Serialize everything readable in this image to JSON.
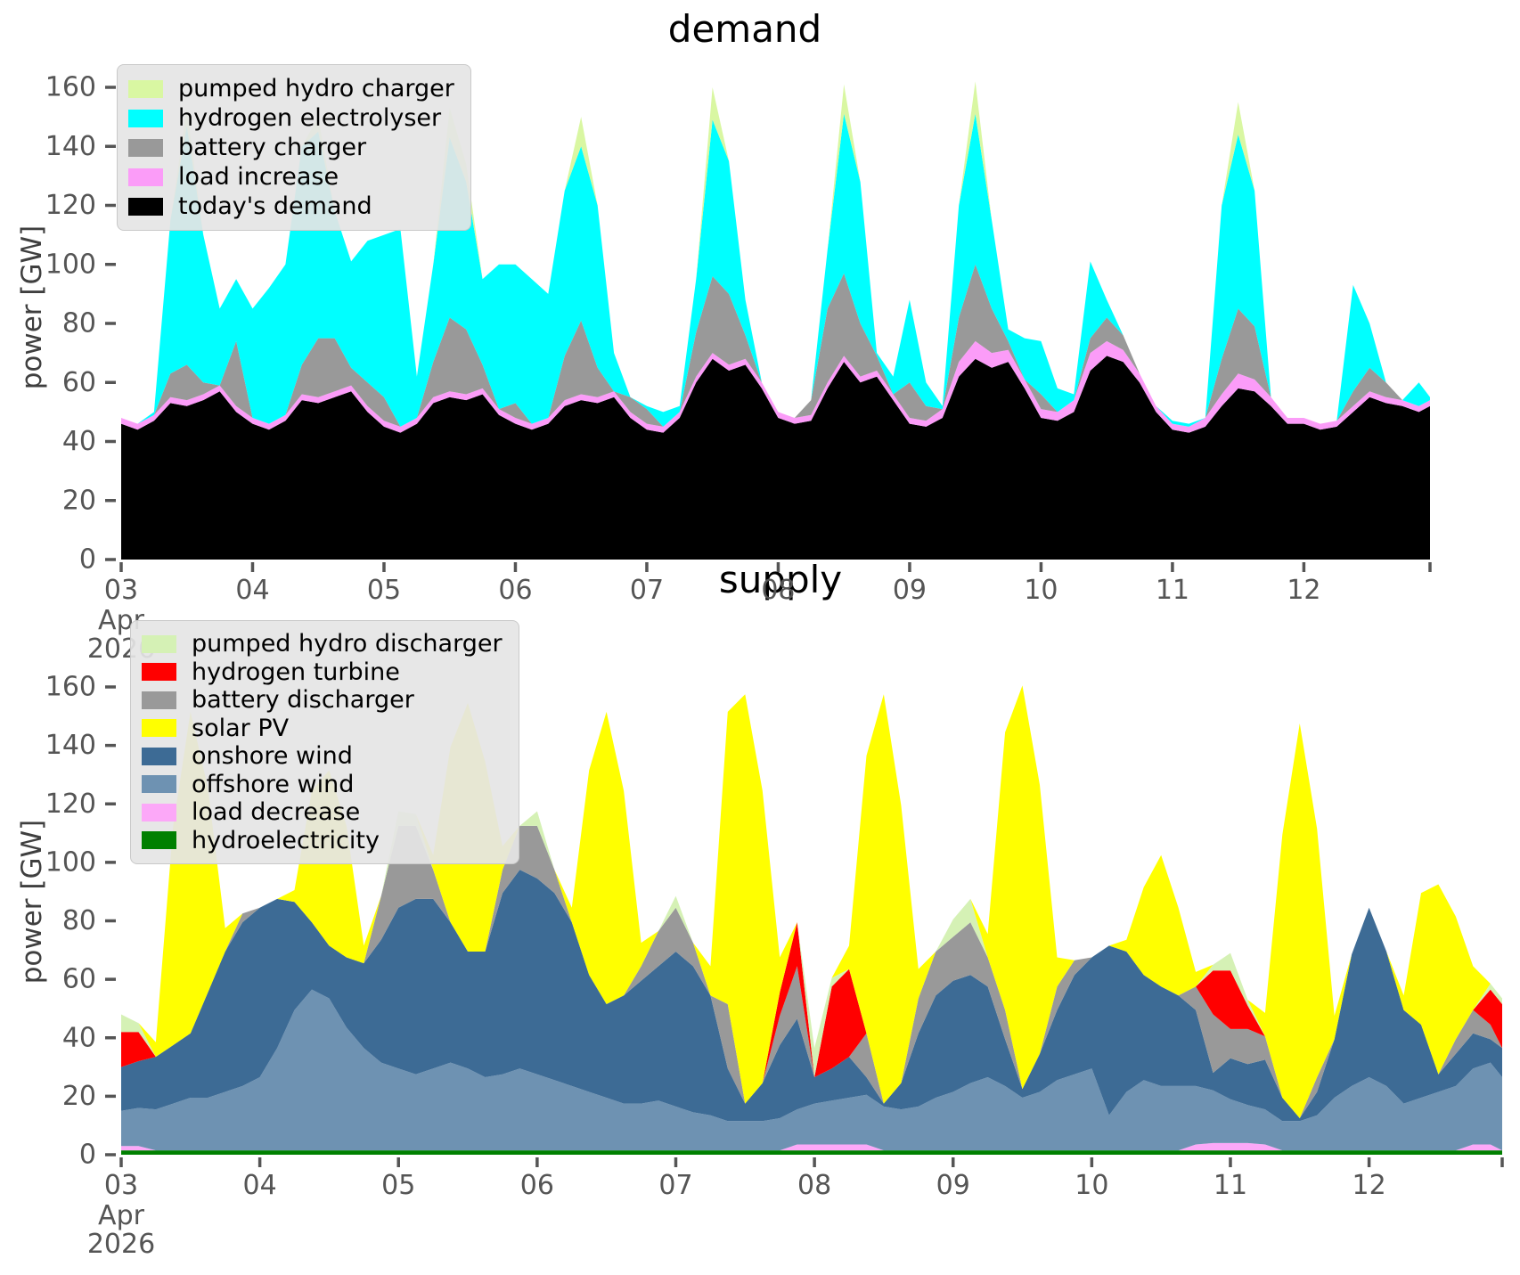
{
  "chart_data": [
    {
      "type": "area",
      "stacked": true,
      "title": "demand",
      "ylabel": "power [GW]",
      "ylim": [
        0,
        170
      ],
      "grid": false,
      "legend_position": "upper left",
      "x_start": 3,
      "x_step_days": 0.125,
      "x_end": 12.96,
      "xtick_labels": [
        "03",
        "04",
        "05",
        "06",
        "07",
        "08",
        "09",
        "10",
        "11",
        "12"
      ],
      "xtick_month": "Apr",
      "xtick_year": "2026",
      "yticks": [
        0,
        20,
        40,
        60,
        80,
        100,
        120,
        140,
        160
      ],
      "legend_order": [
        "pumped hydro charger",
        "hydrogen electrolyser",
        "battery charger",
        "load increase",
        "today's demand"
      ],
      "series": [
        {
          "name": "today's demand",
          "color": "#000000",
          "values": [
            46,
            44,
            47,
            53,
            52,
            54,
            57,
            50,
            46,
            44,
            47,
            54,
            53,
            55,
            57,
            50,
            45,
            43,
            46,
            53,
            55,
            54,
            56,
            49,
            46,
            44,
            46,
            52,
            54,
            53,
            55,
            48,
            44,
            43,
            48,
            60,
            68,
            64,
            66,
            58,
            48,
            46,
            47,
            58,
            67,
            60,
            62,
            54,
            46,
            45,
            48,
            62,
            68,
            65,
            67,
            58,
            48,
            47,
            50,
            64,
            69,
            67,
            60,
            50,
            44,
            43,
            45,
            52,
            58,
            57,
            52,
            46,
            46,
            44,
            45,
            50,
            55,
            53,
            52,
            50,
            52
          ]
        },
        {
          "name": "load increase",
          "color": "#fb9cf8",
          "values": [
            2,
            2,
            2,
            2,
            2,
            2,
            2,
            2,
            2,
            2,
            2,
            2,
            2,
            2,
            2,
            2,
            2,
            2,
            2,
            2,
            2,
            2,
            2,
            2,
            2,
            2,
            2,
            2,
            2,
            2,
            2,
            2,
            2,
            2,
            2,
            2,
            2,
            2,
            2,
            2,
            2,
            2,
            2,
            2,
            2,
            2,
            2,
            2,
            2,
            2,
            3,
            5,
            6,
            5,
            4,
            3,
            3,
            3,
            4,
            6,
            5,
            4,
            3,
            2,
            2,
            2,
            3,
            4,
            5,
            4,
            3,
            2,
            2,
            2,
            2,
            2,
            2,
            2,
            2,
            2,
            2
          ]
        },
        {
          "name": "battery charger",
          "color": "#999999",
          "values": [
            0,
            0,
            0,
            8,
            12,
            4,
            0,
            22,
            0,
            0,
            0,
            10,
            20,
            18,
            6,
            8,
            8,
            0,
            0,
            12,
            25,
            22,
            8,
            0,
            5,
            0,
            0,
            15,
            25,
            10,
            0,
            5,
            5,
            0,
            0,
            15,
            26,
            24,
            8,
            0,
            0,
            0,
            5,
            25,
            28,
            18,
            5,
            0,
            12,
            5,
            0,
            15,
            26,
            15,
            3,
            0,
            5,
            0,
            0,
            5,
            8,
            5,
            0,
            0,
            0,
            0,
            0,
            12,
            22,
            18,
            0,
            0,
            0,
            0,
            0,
            5,
            8,
            5,
            0,
            0,
            0
          ]
        },
        {
          "name": "hydrogen electrolyser",
          "color": "#00ffff",
          "values": [
            0,
            0,
            1,
            52,
            81,
            50,
            26,
            21,
            37,
            46,
            51,
            74,
            70,
            43,
            36,
            48,
            55,
            67,
            14,
            33,
            61,
            50,
            29,
            49,
            47,
            49,
            42,
            56,
            59,
            55,
            13,
            0,
            1,
            5,
            2,
            18,
            53,
            45,
            12,
            0,
            0,
            0,
            0,
            20,
            54,
            48,
            1,
            6,
            28,
            8,
            1,
            38,
            51,
            30,
            4,
            14,
            18,
            8,
            2,
            26,
            6,
            0,
            0,
            0,
            1,
            1,
            0,
            52,
            59,
            46,
            0,
            0,
            0,
            0,
            0,
            36,
            15,
            0,
            0,
            8,
            1
          ]
        },
        {
          "name": "pumped hydro charger",
          "color": "#d9f7a2",
          "values": [
            0,
            0,
            0,
            0,
            6,
            0,
            0,
            0,
            0,
            0,
            0,
            0,
            5,
            0,
            0,
            0,
            0,
            0,
            0,
            0,
            10,
            6,
            0,
            0,
            0,
            0,
            0,
            0,
            10,
            0,
            0,
            0,
            0,
            0,
            0,
            0,
            11,
            0,
            0,
            0,
            0,
            0,
            0,
            0,
            10,
            0,
            0,
            0,
            0,
            0,
            0,
            0,
            11,
            0,
            0,
            0,
            0,
            0,
            0,
            0,
            0,
            0,
            0,
            0,
            0,
            0,
            0,
            0,
            11,
            0,
            0,
            0,
            0,
            0,
            0,
            0,
            0,
            0,
            0,
            0,
            0
          ]
        }
      ]
    },
    {
      "type": "area",
      "stacked": true,
      "title": "supply",
      "ylabel": "power [GW]",
      "ylim": [
        0,
        170
      ],
      "grid": false,
      "legend_position": "upper left",
      "x_start": 3,
      "x_step_days": 0.125,
      "x_end": 12.96,
      "xtick_labels": [
        "03",
        "04",
        "05",
        "06",
        "07",
        "08",
        "09",
        "10",
        "11",
        "12"
      ],
      "xtick_month": "Apr",
      "xtick_year": "2026",
      "yticks": [
        0,
        20,
        40,
        60,
        80,
        100,
        120,
        140,
        160
      ],
      "legend_order": [
        "pumped hydro discharger",
        "hydrogen turbine",
        "battery discharger",
        "solar PV",
        "onshore wind",
        "offshore wind",
        "load decrease",
        "hydroelectricity"
      ],
      "series": [
        {
          "name": "hydroelectricity",
          "color": "#008000",
          "values": [
            1.5,
            1.5,
            1.5,
            1.5,
            1.5,
            1.5,
            1.5,
            1.5,
            1.5,
            1.5,
            1.5,
            1.5,
            1.5,
            1.5,
            1.5,
            1.5,
            1.5,
            1.5,
            1.5,
            1.5,
            1.5,
            1.5,
            1.5,
            1.5,
            1.5,
            1.5,
            1.5,
            1.5,
            1.5,
            1.5,
            1.5,
            1.5,
            1.5,
            1.5,
            1.5,
            1.5,
            1.5,
            1.5,
            1.5,
            1.5,
            1.5,
            1.5,
            1.5,
            1.5,
            1.5,
            1.5,
            1.5,
            1.5,
            1.5,
            1.5,
            1.5,
            1.5,
            1.5,
            1.5,
            1.5,
            1.5,
            1.5,
            1.5,
            1.5,
            1.5,
            1.5,
            1.5,
            1.5,
            1.5,
            1.5,
            1.5,
            1.5,
            1.5,
            1.5,
            1.5,
            1.5,
            1.5,
            1.5,
            1.5,
            1.5,
            1.5,
            1.5,
            1.5,
            1.5,
            1.5,
            1.5
          ]
        },
        {
          "name": "load decrease",
          "color": "#fca8f8",
          "values": [
            1.5,
            1.5,
            0,
            0,
            0,
            0,
            0,
            0,
            0,
            0,
            0,
            0,
            0,
            0,
            0,
            0,
            0,
            0,
            0,
            0,
            0,
            0,
            0,
            0,
            0,
            0,
            0,
            0,
            0,
            0,
            0,
            0,
            0,
            0,
            0,
            0,
            0,
            0,
            0,
            2,
            2,
            2,
            2,
            2,
            0,
            0,
            0,
            0,
            0,
            0,
            0,
            0,
            0,
            0,
            0,
            0,
            0,
            0,
            0,
            0,
            0,
            0,
            2,
            2.5,
            2.5,
            2.5,
            2,
            0,
            0,
            0,
            0,
            0,
            0,
            0,
            0,
            0,
            0,
            0,
            2,
            2,
            0
          ]
        },
        {
          "name": "offshore wind",
          "color": "#6e92b2",
          "values": [
            12,
            13,
            14,
            16,
            18,
            18,
            20,
            22,
            25,
            35,
            48,
            55,
            52,
            42,
            35,
            30,
            28,
            26,
            28,
            30,
            28,
            25,
            26,
            28,
            26,
            24,
            22,
            20,
            18,
            16,
            16,
            17,
            15,
            13,
            12,
            10,
            10,
            10,
            11,
            12,
            14,
            15,
            16,
            17,
            15,
            14,
            15,
            18,
            20,
            23,
            25,
            22,
            18,
            20,
            24,
            26,
            28,
            12,
            20,
            24,
            22,
            22,
            20,
            18,
            15,
            13,
            12,
            10,
            10,
            12,
            18,
            22,
            25,
            22,
            16,
            18,
            20,
            22,
            26,
            28,
            25
          ]
        },
        {
          "name": "onshore wind",
          "color": "#3d6b95",
          "values": [
            15,
            16,
            18,
            20,
            22,
            36,
            48,
            56,
            58,
            51,
            37,
            23,
            18,
            24,
            29,
            42,
            55,
            60,
            58,
            48,
            40,
            43,
            62,
            68,
            67,
            64,
            56,
            40,
            32,
            37,
            42,
            46,
            53,
            50,
            41,
            18,
            6,
            13,
            25,
            31,
            9,
            11,
            14,
            6,
            1,
            9,
            25,
            35,
            38,
            37,
            31,
            16,
            3,
            13,
            24,
            34,
            38,
            58,
            48,
            36,
            34,
            31,
            26,
            6,
            14,
            14,
            17,
            8,
            1,
            8,
            20,
            45,
            58,
            46,
            32,
            25,
            6,
            11,
            12,
            8,
            10
          ]
        },
        {
          "name": "battery discharger",
          "color": "#999999",
          "values": [
            0,
            0,
            0,
            0,
            0,
            0,
            0,
            3,
            0,
            0,
            0,
            0,
            0,
            0,
            0,
            15,
            28,
            25,
            10,
            0,
            0,
            0,
            8,
            15,
            18,
            8,
            0,
            0,
            0,
            0,
            5,
            12,
            15,
            8,
            0,
            22,
            0,
            0,
            10,
            18,
            0,
            0,
            0,
            15,
            0,
            0,
            12,
            15,
            15,
            18,
            10,
            10,
            0,
            0,
            8,
            5,
            0,
            0,
            0,
            0,
            0,
            0,
            8,
            20,
            10,
            12,
            8,
            0,
            0,
            5,
            0,
            0,
            0,
            0,
            0,
            0,
            0,
            5,
            8,
            5,
            0
          ]
        },
        {
          "name": "hydrogen turbine",
          "color": "#ff0000",
          "values": [
            12,
            10,
            0,
            0,
            0,
            0,
            0,
            0,
            0,
            0,
            0,
            0,
            0,
            0,
            0,
            0,
            0,
            0,
            0,
            0,
            0,
            0,
            0,
            0,
            0,
            0,
            0,
            0,
            0,
            0,
            0,
            0,
            0,
            0,
            0,
            0,
            0,
            0,
            8,
            15,
            0,
            28,
            30,
            0,
            0,
            0,
            0,
            0,
            0,
            0,
            0,
            0,
            0,
            0,
            0,
            0,
            0,
            0,
            0,
            0,
            0,
            0,
            0,
            15,
            20,
            8,
            0,
            0,
            0,
            0,
            0,
            0,
            0,
            0,
            0,
            0,
            0,
            0,
            0,
            12,
            15
          ]
        },
        {
          "name": "pumped hydro discharger",
          "color": "#d5f1b5",
          "values": [
            6,
            3,
            0,
            0,
            0,
            0,
            0,
            0,
            0,
            0,
            0,
            0,
            0,
            0,
            0,
            0,
            5,
            4,
            0,
            0,
            0,
            0,
            0,
            0,
            5,
            0,
            0,
            0,
            0,
            0,
            0,
            0,
            4,
            0,
            0,
            0,
            0,
            0,
            0,
            0,
            10,
            3,
            0,
            0,
            0,
            0,
            0,
            0,
            6,
            8,
            0,
            0,
            0,
            0,
            0,
            0,
            0,
            0,
            0,
            0,
            0,
            0,
            0,
            2,
            6,
            2,
            0,
            0,
            0,
            0,
            0,
            0,
            0,
            0,
            0,
            0,
            0,
            0,
            0,
            2,
            2
          ]
        },
        {
          "name": "solar PV",
          "color": "#ffff00",
          "values": [
            0,
            0,
            5,
            75,
            110,
            70,
            8,
            0,
            0,
            0,
            4,
            45,
            60,
            45,
            6,
            0,
            0,
            0,
            5,
            60,
            85,
            65,
            8,
            0,
            0,
            0,
            5,
            70,
            100,
            70,
            8,
            0,
            0,
            0,
            10,
            100,
            140,
            100,
            12,
            0,
            0,
            0,
            8,
            95,
            140,
            95,
            10,
            0,
            0,
            0,
            8,
            95,
            138,
            92,
            10,
            0,
            0,
            0,
            4,
            30,
            45,
            30,
            5,
            0,
            0,
            0,
            8,
            90,
            135,
            85,
            8,
            0,
            0,
            0,
            5,
            45,
            65,
            42,
            15,
            0,
            0
          ]
        }
      ]
    }
  ]
}
